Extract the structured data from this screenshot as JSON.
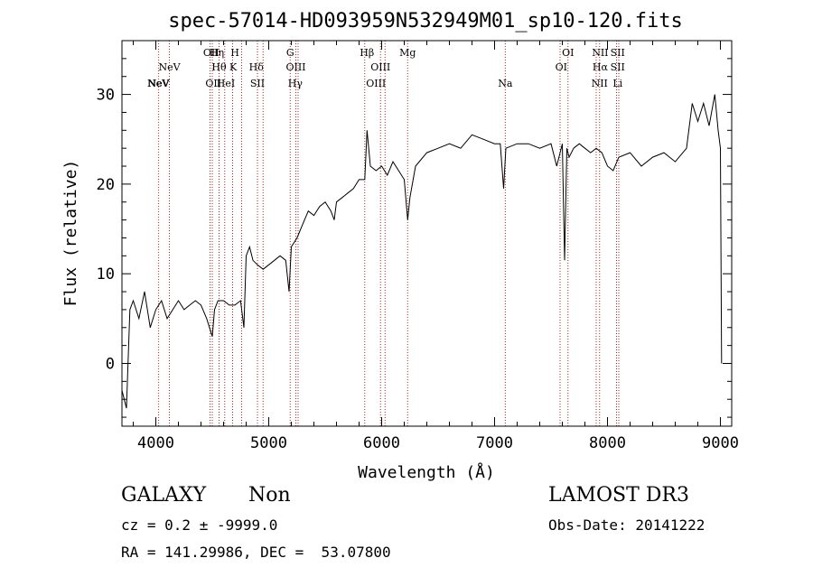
{
  "chart_data": {
    "type": "line",
    "title": "spec-57014-HD093959N532949M01_sp10-120.fits",
    "xlabel": "Wavelength (Å)",
    "ylabel": "Flux (relative)",
    "xlim": [
      3700,
      9100
    ],
    "ylim": [
      -7,
      36
    ],
    "xticks": [
      "4000",
      "5000",
      "6000",
      "7000",
      "8000",
      "9000"
    ],
    "yticks": [
      "0",
      "10",
      "20",
      "30"
    ],
    "grid": false,
    "series": [
      {
        "name": "spectrum",
        "x": [
          3700,
          3740,
          3770,
          3800,
          3850,
          3900,
          3950,
          4000,
          4050,
          4100,
          4150,
          4200,
          4250,
          4300,
          4350,
          4400,
          4450,
          4500,
          4520,
          4550,
          4600,
          4650,
          4700,
          4750,
          4780,
          4800,
          4830,
          4860,
          4900,
          4950,
          5000,
          5050,
          5100,
          5150,
          5180,
          5200,
          5250,
          5300,
          5350,
          5400,
          5450,
          5500,
          5550,
          5580,
          5600,
          5650,
          5700,
          5750,
          5800,
          5850,
          5870,
          5900,
          5950,
          6000,
          6050,
          6100,
          6150,
          6200,
          6230,
          6250,
          6300,
          6400,
          6500,
          6600,
          6700,
          6800,
          6900,
          7000,
          7050,
          7080,
          7100,
          7200,
          7300,
          7400,
          7500,
          7550,
          7600,
          7620,
          7640,
          7660,
          7700,
          7750,
          7800,
          7850,
          7900,
          7950,
          8000,
          8050,
          8100,
          8200,
          8300,
          8400,
          8500,
          8600,
          8700,
          8750,
          8800,
          8850,
          8900,
          8950,
          8980,
          9000,
          9010
        ],
        "y": [
          -3,
          -5,
          6,
          7,
          5,
          8,
          4,
          6,
          7,
          5,
          6,
          7,
          6,
          6.5,
          7,
          6.5,
          5,
          3,
          6,
          7,
          7,
          6.5,
          6.5,
          7,
          4,
          12,
          13,
          11.5,
          11,
          10.5,
          11,
          11.5,
          12,
          11.5,
          8,
          13,
          14,
          15.5,
          17,
          16.5,
          17.5,
          18,
          17,
          16,
          18,
          18.5,
          19,
          19.5,
          20.5,
          20.5,
          26,
          22,
          21.5,
          22,
          21,
          22.5,
          21.5,
          20.5,
          16,
          18.5,
          22,
          23.5,
          24,
          24.5,
          24,
          25.5,
          25,
          24.5,
          24.5,
          19.5,
          24,
          24.5,
          24.5,
          24,
          24.5,
          22,
          24.5,
          11.5,
          24,
          23,
          24,
          24.5,
          24,
          23.5,
          24,
          23.5,
          22,
          21.5,
          23,
          23.5,
          22,
          23,
          23.5,
          22.5,
          24,
          29,
          27,
          29,
          26.5,
          30,
          26,
          24,
          0
        ]
      }
    ],
    "line_labels": [
      {
        "name": "NeV",
        "wavelength": 3426,
        "row": 3
      },
      {
        "name": "NeV",
        "wavelength": 4025,
        "row": 3
      },
      {
        "name": "NeV",
        "wavelength": 4120,
        "row": 2
      },
      {
        "name": "OII",
        "wavelength": 4490,
        "row": 1
      },
      {
        "name": "OII",
        "wavelength": 4510,
        "row": 3
      },
      {
        "name": "Hη",
        "wavelength": 4540,
        "row": 1
      },
      {
        "name": "Hθ",
        "wavelength": 4560,
        "row": 2
      },
      {
        "name": "HeI",
        "wavelength": 4620,
        "row": 3
      },
      {
        "name": "H",
        "wavelength": 4700,
        "row": 1
      },
      {
        "name": "K",
        "wavelength": 4685,
        "row": 2
      },
      {
        "name": "Hδ",
        "wavelength": 4890,
        "row": 2
      },
      {
        "name": "SII",
        "wavelength": 4900,
        "row": 3
      },
      {
        "name": "G",
        "wavelength": 5190,
        "row": 1
      },
      {
        "name": "OIII",
        "wavelength": 5240,
        "row": 2
      },
      {
        "name": "Hγ",
        "wavelength": 5235,
        "row": 3
      },
      {
        "name": "Hβ",
        "wavelength": 5870,
        "row": 1
      },
      {
        "name": "OIII",
        "wavelength": 5990,
        "row": 2
      },
      {
        "name": "OIII",
        "wavelength": 5950,
        "row": 3
      },
      {
        "name": "Mg",
        "wavelength": 6230,
        "row": 1
      },
      {
        "name": "Na",
        "wavelength": 7095,
        "row": 3
      },
      {
        "name": "OI",
        "wavelength": 7650,
        "row": 1
      },
      {
        "name": "OI",
        "wavelength": 7590,
        "row": 2
      },
      {
        "name": "NII",
        "wavelength": 7935,
        "row": 1
      },
      {
        "name": "Hα",
        "wavelength": 7935,
        "row": 2
      },
      {
        "name": "NII",
        "wavelength": 7930,
        "row": 3
      },
      {
        "name": "SII",
        "wavelength": 8090,
        "row": 1
      },
      {
        "name": "SII",
        "wavelength": 8090,
        "row": 2
      },
      {
        "name": "Li",
        "wavelength": 8090,
        "row": 3
      }
    ],
    "marker_lines": [
      4025,
      4120,
      4480,
      4500,
      4560,
      4610,
      4680,
      4760,
      4900,
      4950,
      5190,
      5240,
      5260,
      5850,
      5990,
      6030,
      6230,
      7095,
      7580,
      7650,
      7900,
      7930,
      8080,
      8100
    ]
  },
  "info": {
    "object_class": "GALAXY",
    "subclass": "Non",
    "survey": "LAMOST DR3",
    "redshift": "cz = 0.2 ± -9999.0",
    "obs_date": "Obs-Date: 20141222",
    "coordinates": "RA = 141.29986, DEC =  53.07800"
  },
  "colors": {
    "marker": "#b22222",
    "spectrum": "#000000"
  }
}
